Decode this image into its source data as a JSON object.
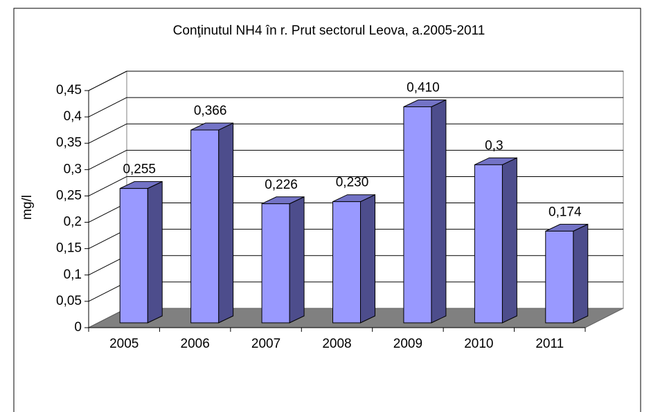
{
  "chart_data": {
    "type": "bar",
    "title": "Conţinutul NH4 în r. Prut sectorul Leova, a.2005-2011",
    "y_label": "mg/l",
    "categories": [
      "2005",
      "2006",
      "2007",
      "2008",
      "2009",
      "2010",
      "2011"
    ],
    "values": [
      0.255,
      0.366,
      0.226,
      0.23,
      0.41,
      0.3,
      0.174
    ],
    "value_labels": [
      "0,255",
      "0,366",
      "0,226",
      "0,230",
      "0,410",
      "0,3",
      "0,174"
    ],
    "color": "#9999ff",
    "ylim": [
      0,
      0.45
    ],
    "yticks": [
      0,
      {
        "value": 0.05,
        "label": "0,05"
      },
      {
        "value": 0.1,
        "label": "0,1"
      },
      {
        "value": 0.15,
        "label": "0,15"
      },
      {
        "value": 0.2,
        "label": "0,2"
      },
      {
        "value": 0.25,
        "label": "0,25"
      },
      {
        "value": 0.3,
        "label": "0,3"
      },
      {
        "value": 0.35,
        "label": "0,35"
      },
      {
        "value": 0.4,
        "label": "0,4"
      },
      {
        "value": 0.45,
        "label": "0,45"
      }
    ],
    "grid": true
  }
}
